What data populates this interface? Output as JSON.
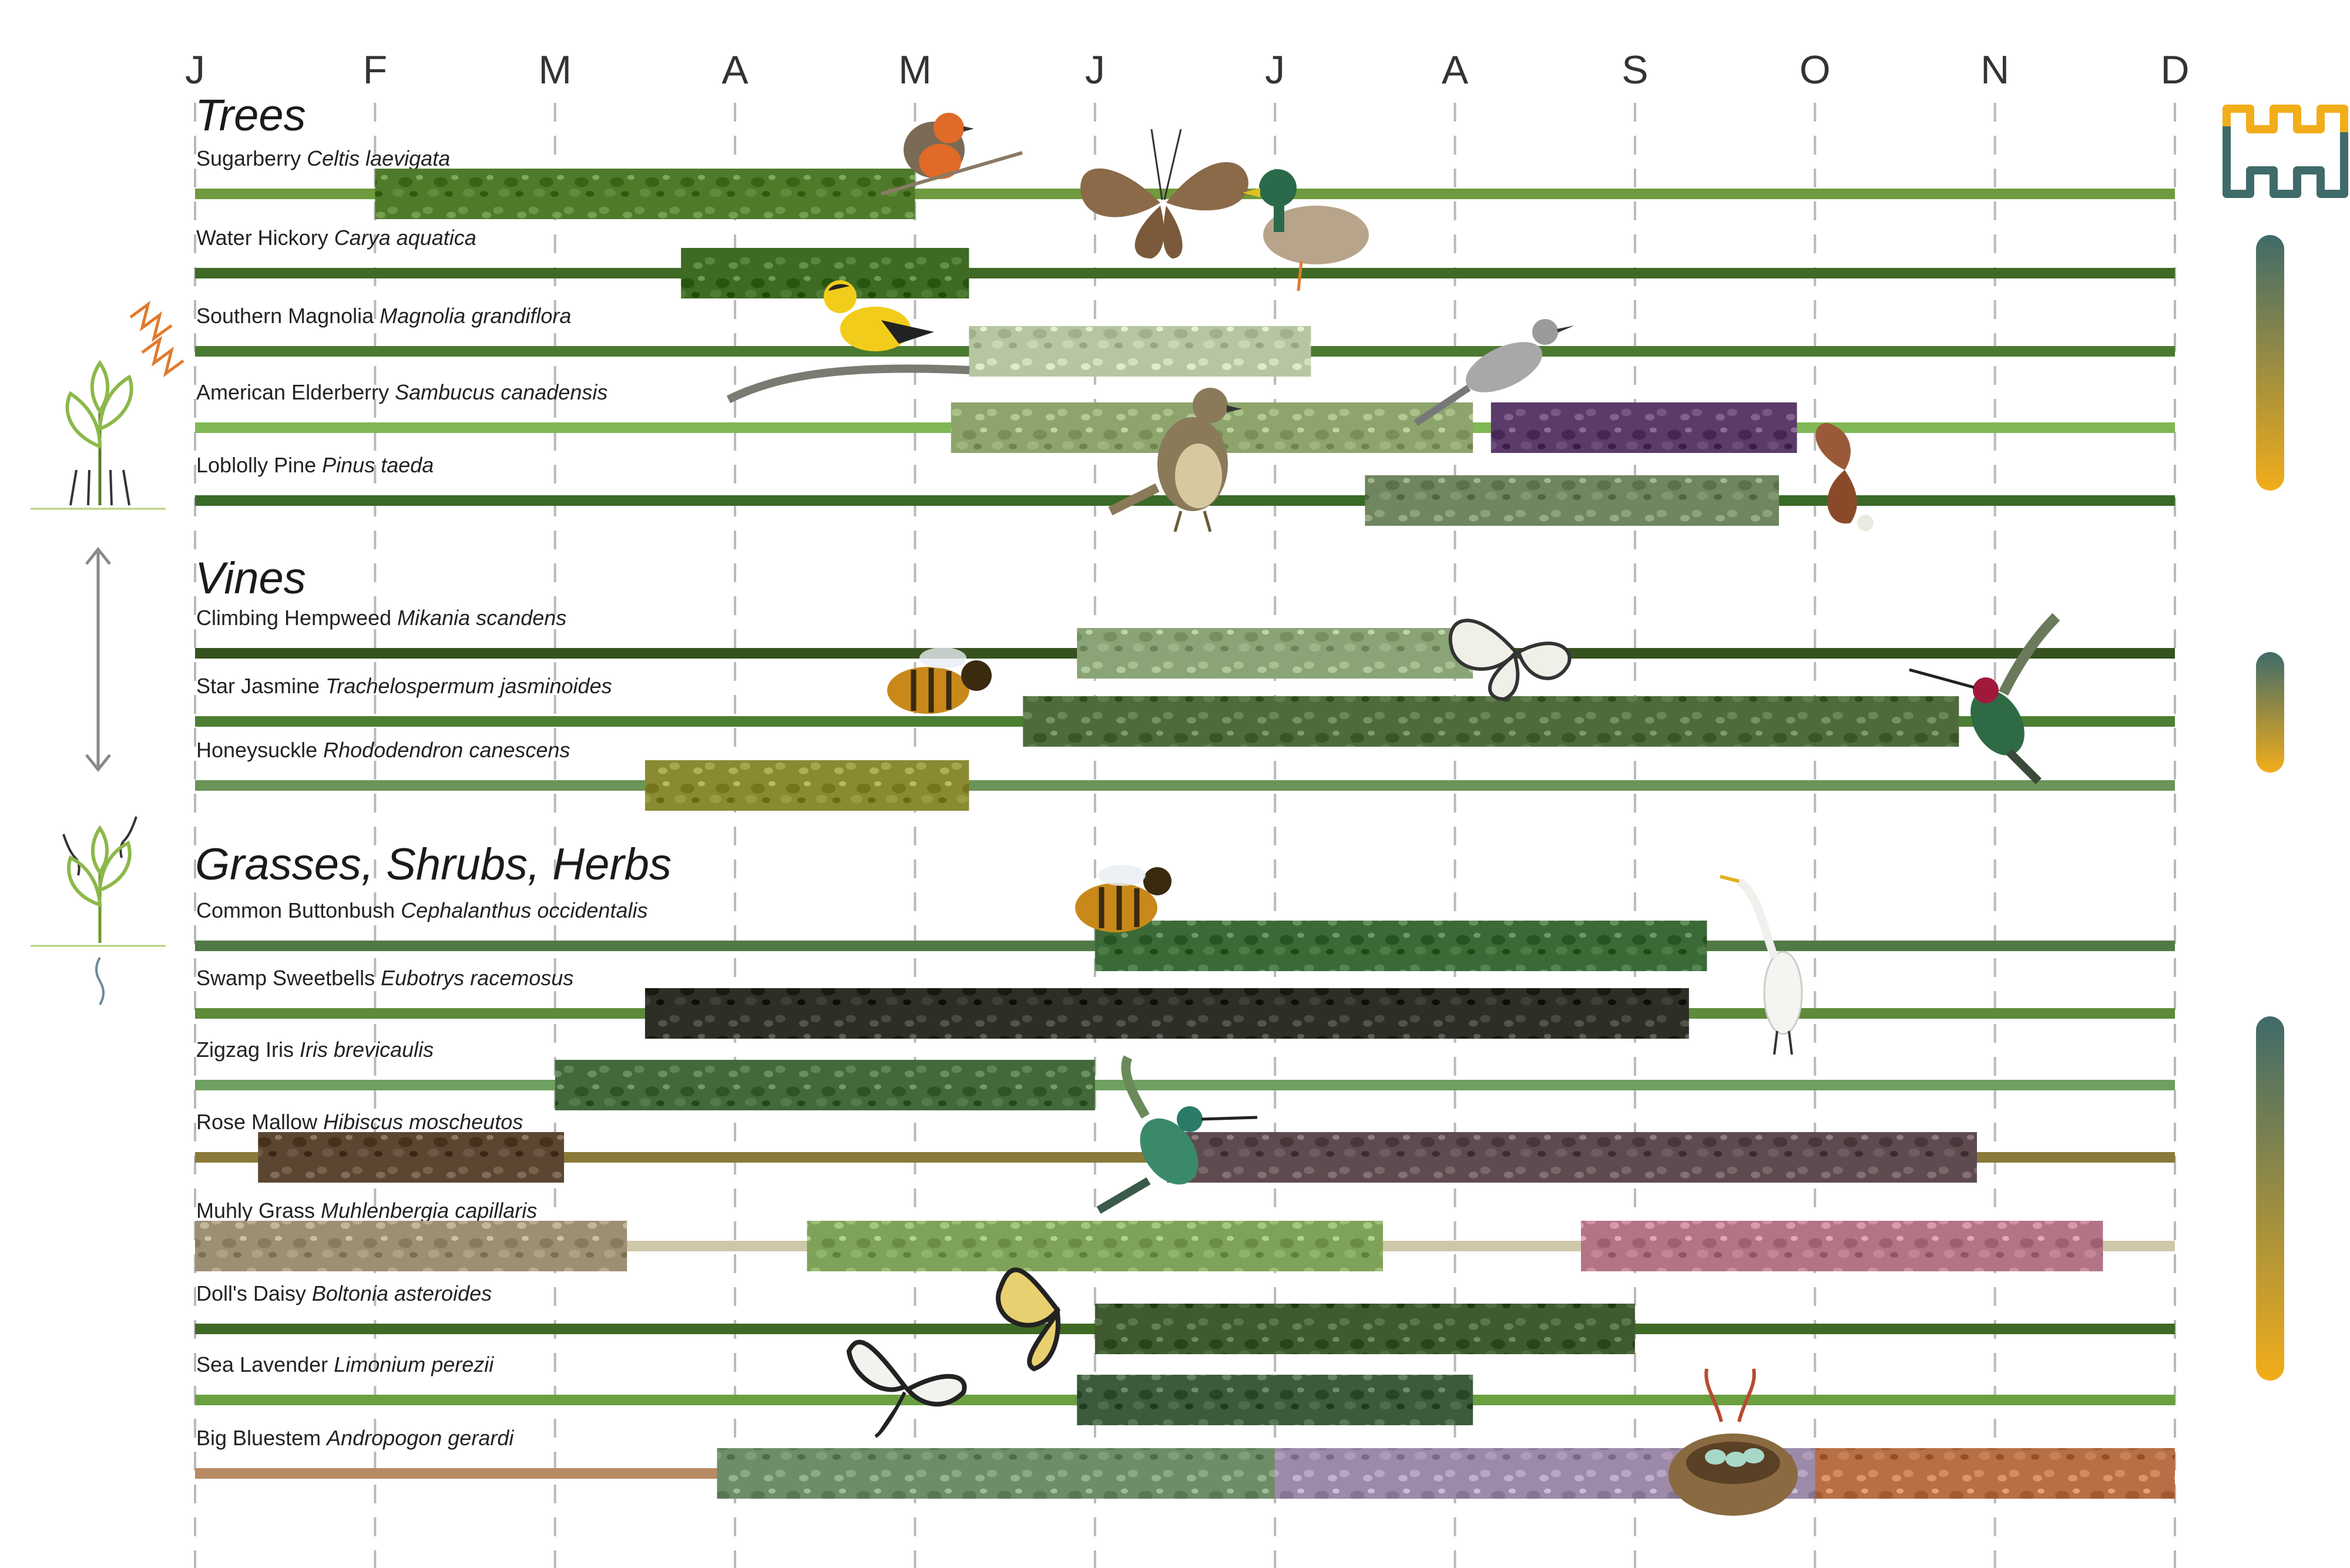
{
  "months": [
    "J",
    "F",
    "M",
    "A",
    "M",
    "J",
    "J",
    "A",
    "S",
    "O",
    "N",
    "D"
  ],
  "sections": [
    {
      "title": "Trees",
      "rows": [
        {
          "common": "Sugarberry",
          "scientific": "Celtis laevigata",
          "line_color": "#6f9a3d",
          "bloom": [
            [
              1.0,
              4.0
            ]
          ],
          "bloom_colors": [
            "#4f7a2a"
          ]
        },
        {
          "common": "Water Hickory",
          "scientific": "Carya aquatica",
          "line_color": "#3f6a25",
          "bloom": [
            [
              2.7,
              4.3
            ]
          ],
          "bloom_colors": [
            "#3e6a23"
          ]
        },
        {
          "common": "Southern Magnolia",
          "scientific": "Magnolia grandiflora",
          "line_color": "#4a7a30",
          "bloom": [
            [
              4.3,
              6.2
            ]
          ],
          "bloom_colors": [
            "#b7c6a2"
          ]
        },
        {
          "common": "American Elderberry",
          "scientific": "Sambucus canadensis",
          "line_color": "#7fb854",
          "bloom": [
            [
              4.2,
              7.1
            ],
            [
              7.2,
              8.9
            ]
          ],
          "bloom_colors": [
            "#8ea46d",
            "#5b3b6a"
          ]
        },
        {
          "common": "Loblolly Pine",
          "scientific": "Pinus taeda",
          "line_color": "#3a6a28",
          "bloom": [
            [
              6.5,
              8.8
            ]
          ],
          "bloom_colors": [
            "#6f8660"
          ]
        }
      ]
    },
    {
      "title": "Vines",
      "rows": [
        {
          "common": "Climbing Hempweed",
          "scientific": "Mikania scandens",
          "line_color": "#35521f",
          "bloom": [
            [
              4.9,
              7.1
            ]
          ],
          "bloom_colors": [
            "#8aa477"
          ]
        },
        {
          "common": "Star Jasmine",
          "scientific": "Trachelospermum jasminoides",
          "line_color": "#4c7f33",
          "bloom": [
            [
              4.6,
              9.8
            ]
          ],
          "bloom_colors": [
            "#4f6b3c"
          ]
        },
        {
          "common": "Honeysuckle",
          "scientific": "Rhododendron canescens",
          "line_color": "#6b9458",
          "bloom": [
            [
              2.5,
              4.3
            ]
          ],
          "bloom_colors": [
            "#8a8a32"
          ]
        }
      ]
    },
    {
      "title": "Grasses, Shrubs, Herbs",
      "rows": [
        {
          "common": "Common Buttonbush",
          "scientific": "Cephalanthus occidentalis",
          "line_color": "#507a45",
          "bloom": [
            [
              5.0,
              8.4
            ]
          ],
          "bloom_colors": [
            "#3b6a36"
          ]
        },
        {
          "common": "Swamp Sweetbells",
          "scientific": "Eubotrys racemosus",
          "line_color": "#5d8b3a",
          "bloom": [
            [
              2.5,
              8.3
            ]
          ],
          "bloom_colors": [
            "#2b2f26"
          ]
        },
        {
          "common": "Zigzag Iris",
          "scientific": "Iris brevicaulis",
          "line_color": "#6ea060",
          "bloom": [
            [
              2.0,
              5.0
            ]
          ],
          "bloom_colors": [
            "#43693a"
          ]
        },
        {
          "common": "Rose Mallow",
          "scientific": "Hibiscus moscheutos",
          "line_color": "#8a7a3a",
          "bloom": [
            [
              0.35,
              2.05
            ],
            [
              5.4,
              9.9
            ]
          ],
          "bloom_colors": [
            "#5b4632",
            "#5e4b4f"
          ]
        },
        {
          "common": "Muhly Grass",
          "scientific": "Muhlenbergia capillaris",
          "line_color": "#cfc8a8",
          "bloom": [
            [
              0.0,
              2.4
            ],
            [
              3.4,
              6.6
            ],
            [
              7.7,
              10.6
            ]
          ],
          "bloom_colors": [
            "#9d8f73",
            "#7fa25a",
            "#b37585"
          ]
        },
        {
          "common": "Doll's Daisy",
          "scientific": "Boltonia asteroides",
          "line_color": "#3e6a25",
          "bloom": [
            [
              5.0,
              8.0
            ]
          ],
          "bloom_colors": [
            "#3e5a2e"
          ]
        },
        {
          "common": "Sea Lavender",
          "scientific": "Limonium perezii",
          "line_color": "#6aa040",
          "bloom": [
            [
              4.9,
              7.1
            ]
          ],
          "bloom_colors": [
            "#3c5a3c"
          ]
        },
        {
          "common": "Big Bluestem",
          "scientific": "Andropogon gerardi",
          "line_color": "#b88a64",
          "bloom": [
            [
              2.9,
              6.0
            ],
            [
              6.0,
              9.0
            ],
            [
              9.0,
              11.0
            ]
          ],
          "bloom_colors": [
            "#6f8c6a",
            "#9c8aa8",
            "#b86f45"
          ]
        }
      ]
    }
  ],
  "colors": {
    "gradient_top": "#3f6b6a",
    "gradient_bottom": "#f2ad1a",
    "grid": "#b9b9b9"
  },
  "icons": [
    "tree-growth-icon",
    "double-arrow-icon",
    "seedling-growth-icon",
    "logo-icon",
    "robin-icon",
    "butterfly-icon",
    "duck-icon",
    "goldfinch-icon",
    "mockingbird-icon",
    "thrush-icon",
    "bee-icon",
    "hummingbird-icon",
    "egret-icon",
    "swallowtail-icon",
    "nest-icon"
  ]
}
